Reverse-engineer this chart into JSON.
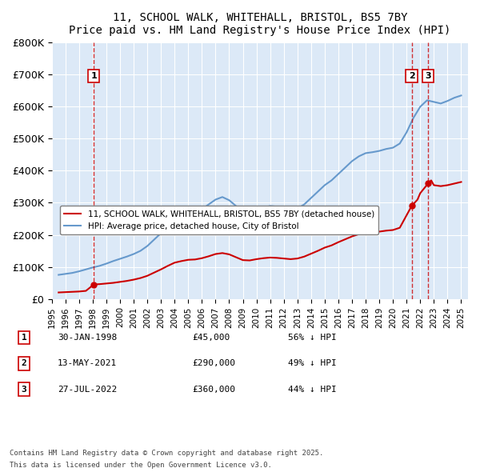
{
  "title1": "11, SCHOOL WALK, WHITEHALL, BRISTOL, BS5 7BY",
  "title2": "Price paid vs. HM Land Registry's House Price Index (HPI)",
  "ylabel": "",
  "ylim": [
    0,
    800000
  ],
  "yticks": [
    0,
    100000,
    200000,
    300000,
    400000,
    500000,
    600000,
    700000,
    800000
  ],
  "ytick_labels": [
    "£0",
    "£100K",
    "£200K",
    "£300K",
    "£400K",
    "£500K",
    "£600K",
    "£700K",
    "£800K"
  ],
  "xlim_start": 1995.0,
  "xlim_end": 2025.5,
  "background_color": "#dce9f7",
  "plot_bg_color": "#dce9f7",
  "grid_color": "#ffffff",
  "red_color": "#cc0000",
  "blue_color": "#6699cc",
  "legend_label_red": "11, SCHOOL WALK, WHITEHALL, BRISTOL, BS5 7BY (detached house)",
  "legend_label_blue": "HPI: Average price, detached house, City of Bristol",
  "transactions": [
    {
      "num": 1,
      "date": "30-JAN-1998",
      "year": 1998.08,
      "price": 45000,
      "pct": "56%",
      "dir": "↓"
    },
    {
      "num": 2,
      "date": "13-MAY-2021",
      "year": 2021.37,
      "price": 290000,
      "pct": "49%",
      "dir": "↓"
    },
    {
      "num": 3,
      "date": "27-JUL-2022",
      "year": 2022.57,
      "price": 360000,
      "pct": "44%",
      "dir": "↓"
    }
  ],
  "footnote1": "Contains HM Land Registry data © Crown copyright and database right 2025.",
  "footnote2": "This data is licensed under the Open Government Licence v3.0.",
  "hpi_data": {
    "years": [
      1995.5,
      1996.0,
      1996.5,
      1997.0,
      1997.5,
      1998.0,
      1998.5,
      1999.0,
      1999.5,
      2000.0,
      2000.5,
      2001.0,
      2001.5,
      2002.0,
      2002.5,
      2003.0,
      2003.5,
      2004.0,
      2004.5,
      2005.0,
      2005.5,
      2006.0,
      2006.5,
      2007.0,
      2007.5,
      2008.0,
      2008.5,
      2009.0,
      2009.5,
      2010.0,
      2010.5,
      2011.0,
      2011.5,
      2012.0,
      2012.5,
      2013.0,
      2013.5,
      2014.0,
      2014.5,
      2015.0,
      2015.5,
      2016.0,
      2016.5,
      2017.0,
      2017.5,
      2018.0,
      2018.5,
      2019.0,
      2019.5,
      2020.0,
      2020.5,
      2021.0,
      2021.5,
      2022.0,
      2022.5,
      2023.0,
      2023.5,
      2024.0,
      2024.5,
      2025.0
    ],
    "values": [
      75000,
      78000,
      81000,
      86000,
      92000,
      98000,
      103000,
      110000,
      118000,
      125000,
      132000,
      140000,
      150000,
      165000,
      185000,
      205000,
      228000,
      250000,
      262000,
      270000,
      272000,
      280000,
      295000,
      310000,
      318000,
      308000,
      290000,
      270000,
      268000,
      278000,
      285000,
      290000,
      288000,
      282000,
      278000,
      282000,
      295000,
      315000,
      335000,
      355000,
      370000,
      390000,
      410000,
      430000,
      445000,
      455000,
      458000,
      462000,
      468000,
      472000,
      485000,
      520000,
      565000,
      600000,
      620000,
      615000,
      610000,
      618000,
      628000,
      635000
    ]
  },
  "price_data": {
    "years": [
      1995.5,
      1996.0,
      1996.5,
      1997.0,
      1997.5,
      1998.08,
      1998.5,
      1999.0,
      1999.5,
      2000.0,
      2000.5,
      2001.0,
      2001.5,
      2002.0,
      2002.5,
      2003.0,
      2003.5,
      2004.0,
      2004.5,
      2005.0,
      2005.5,
      2006.0,
      2006.5,
      2007.0,
      2007.5,
      2008.0,
      2008.5,
      2009.0,
      2009.5,
      2010.0,
      2010.5,
      2011.0,
      2011.5,
      2012.0,
      2012.5,
      2013.0,
      2013.5,
      2014.0,
      2014.5,
      2015.0,
      2015.5,
      2016.0,
      2016.5,
      2017.0,
      2017.5,
      2018.0,
      2018.5,
      2019.0,
      2019.5,
      2020.0,
      2020.5,
      2021.37,
      2021.8,
      2022.0,
      2022.57,
      2022.8,
      2023.0,
      2023.5,
      2024.0,
      2024.5,
      2025.0
    ],
    "values": [
      20000,
      21000,
      22000,
      23000,
      25000,
      45000,
      46000,
      48000,
      50000,
      53000,
      56000,
      60000,
      65000,
      72000,
      82000,
      92000,
      103000,
      113000,
      118000,
      122000,
      123000,
      127000,
      133000,
      140000,
      143000,
      139000,
      130000,
      121000,
      120000,
      124000,
      127000,
      129000,
      128000,
      126000,
      124000,
      126000,
      132000,
      141000,
      150000,
      160000,
      167000,
      177000,
      186000,
      195000,
      202000,
      207000,
      208000,
      210000,
      213000,
      215000,
      222000,
      290000,
      310000,
      330000,
      360000,
      370000,
      355000,
      352000,
      355000,
      360000,
      365000
    ]
  }
}
